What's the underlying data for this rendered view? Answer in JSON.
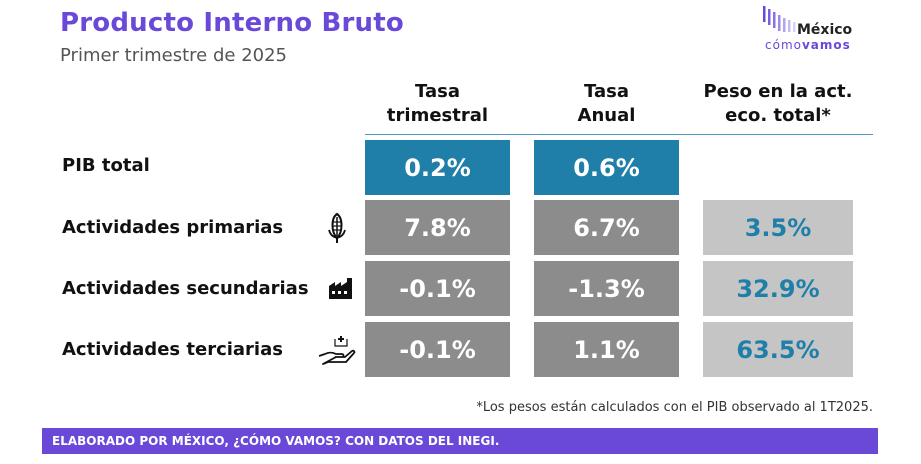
{
  "header": {
    "title": "Producto Interno Bruto",
    "subtitle": "Primer trimestre de 2025"
  },
  "logo": {
    "name": "México",
    "tagline_light": "cómo",
    "tagline_bold": "vamos",
    "bar_color": "#6a48d8"
  },
  "columns": {
    "quarterly": [
      "Tasa",
      "trimestral"
    ],
    "annual": [
      "Tasa",
      "Anual"
    ],
    "weight": [
      "Peso en la act.",
      "eco. total*"
    ]
  },
  "rows": [
    {
      "label": "PIB total",
      "icon": null,
      "quarterly": "0.2%",
      "annual": "0.6%",
      "weight": null
    },
    {
      "label": "Actividades primarias",
      "icon": "corn-icon",
      "quarterly": "7.8%",
      "annual": "6.7%",
      "weight": "3.5%"
    },
    {
      "label": "Actividades secundarias",
      "icon": "factory-icon",
      "quarterly": "-0.1%",
      "annual": "-1.3%",
      "weight": "32.9%"
    },
    {
      "label": "Actividades terciarias",
      "icon": "hand-plus-icon",
      "quarterly": "-0.1%",
      "annual": "1.1%",
      "weight": "63.5%"
    }
  ],
  "footnote": "*Los pesos están calculados con el PIB observado al 1T2025.",
  "footer": "ELABORADO POR MÉXICO, ¿CÓMO VAMOS? CON DATOS DEL INEGI.",
  "colors": {
    "accent_purple": "#6a48d8",
    "highlight_blue": "#1f7fa8",
    "cell_gray": "#8c8c8c",
    "cell_light_gray": "#c5c5c5"
  }
}
